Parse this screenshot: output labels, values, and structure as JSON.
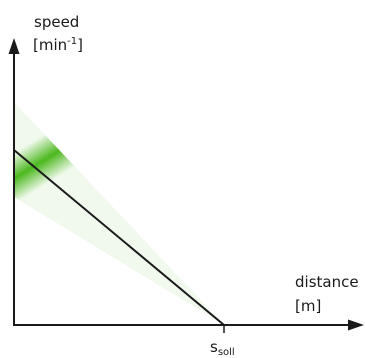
{
  "diagram": {
    "y_axis": {
      "label": "speed",
      "unit_prefix": "[min",
      "unit_exponent": "-1",
      "unit_suffix": "]"
    },
    "x_axis": {
      "label": "distance",
      "unit": "[m]",
      "tick_symbol": "s",
      "tick_subscript": "soll"
    },
    "colors": {
      "axis": "#1a1a1a",
      "band": "#4cb81e",
      "line": "#1a1a1a"
    }
  }
}
